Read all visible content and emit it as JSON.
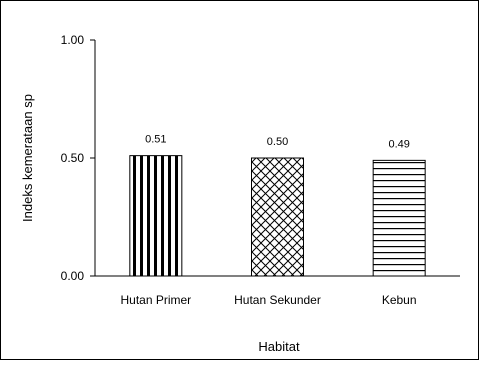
{
  "chart_data": {
    "type": "bar",
    "categories": [
      "Hutan Primer",
      "Hutan Sekunder",
      "Kebun"
    ],
    "values": [
      0.51,
      0.5,
      0.49
    ],
    "data_labels": [
      "0.51",
      "0.50",
      "0.49"
    ],
    "ylabel": "Indeks kemerataan sp",
    "xlabel": "Habitat",
    "ylim": [
      0,
      1
    ],
    "yticks": [
      "0.00",
      "0.50",
      "1.00"
    ],
    "grid": false,
    "patterns": [
      "vertical-lines",
      "diagonal-crosshatch",
      "horizontal-lines"
    ],
    "colors": {
      "stroke": "#000000",
      "background": "#ffffff"
    }
  }
}
